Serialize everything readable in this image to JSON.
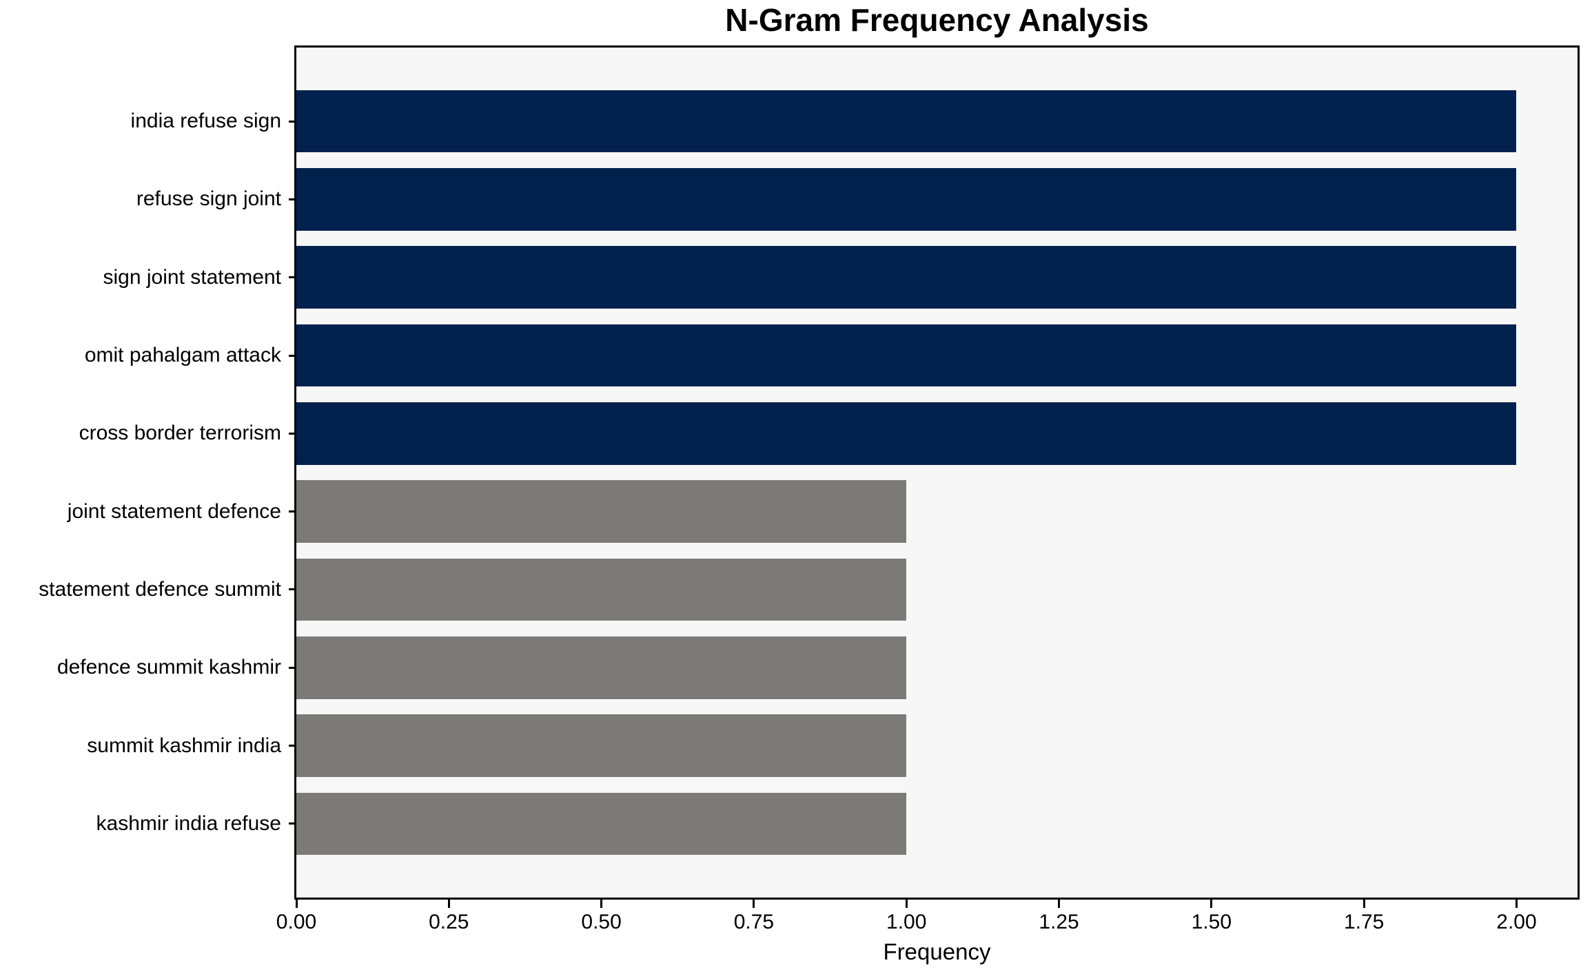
{
  "chart_data": {
    "type": "bar",
    "orientation": "horizontal",
    "title": "N-Gram Frequency Analysis",
    "xlabel": "Frequency",
    "ylabel": "",
    "categories": [
      "india refuse sign",
      "refuse sign joint",
      "sign joint statement",
      "omit pahalgam attack",
      "cross border terrorism",
      "joint statement defence",
      "statement defence summit",
      "defence summit kashmir",
      "summit kashmir india",
      "kashmir india refuse"
    ],
    "values": [
      2,
      2,
      2,
      2,
      2,
      1,
      1,
      1,
      1,
      1
    ],
    "bar_colors": [
      "#02224d",
      "#02224d",
      "#02224d",
      "#02224d",
      "#02224d",
      "#7b7a76",
      "#7b7a76",
      "#7b7a76",
      "#7b7a76",
      "#7b7a76"
    ],
    "xlim": [
      0,
      2.1
    ],
    "x_ticks": [
      {
        "value": 0.0,
        "label": "0.00"
      },
      {
        "value": 0.25,
        "label": "0.25"
      },
      {
        "value": 0.5,
        "label": "0.50"
      },
      {
        "value": 0.75,
        "label": "0.75"
      },
      {
        "value": 1.0,
        "label": "1.00"
      },
      {
        "value": 1.25,
        "label": "1.25"
      },
      {
        "value": 1.5,
        "label": "1.50"
      },
      {
        "value": 1.75,
        "label": "1.75"
      },
      {
        "value": 2.0,
        "label": "2.00"
      }
    ],
    "grid": false,
    "legend": false,
    "plot_background": "#f7f7f8",
    "figure_background": "#ffffff",
    "spine_color": "#000000",
    "text_color": "#000000"
  }
}
